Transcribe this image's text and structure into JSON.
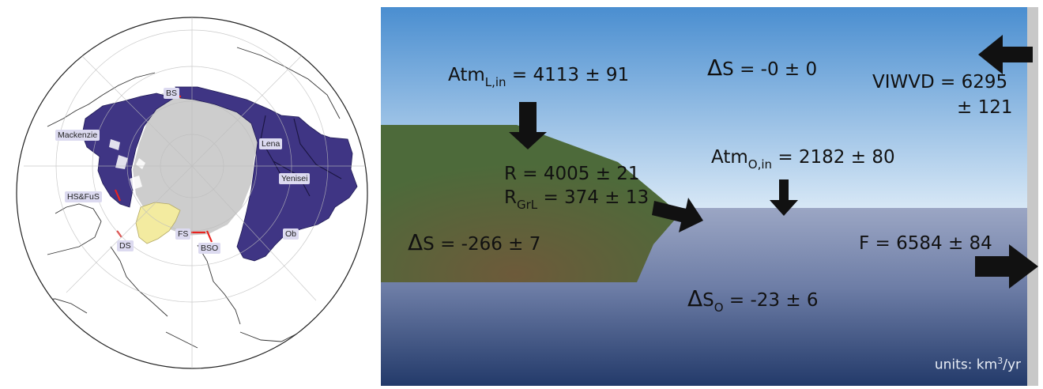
{
  "map": {
    "regions": [
      {
        "key": "bs",
        "label": "BS"
      },
      {
        "key": "mackenzie",
        "label": "Mackenzie"
      },
      {
        "key": "lena",
        "label": "Lena"
      },
      {
        "key": "yenisei",
        "label": "Yenisei"
      },
      {
        "key": "hsfus",
        "label": "HS&FuS"
      },
      {
        "key": "ob",
        "label": "Ob"
      },
      {
        "key": "fs",
        "label": "FS"
      },
      {
        "key": "ds",
        "label": "DS"
      },
      {
        "key": "bso",
        "label": "BSO"
      }
    ],
    "colors": {
      "land": "#ffffff",
      "ocean_interior": "#cdcdcd",
      "watershed": "#3f3584",
      "greenland": "#f3eba0",
      "gateway_line": "#e8231f"
    }
  },
  "diagram": {
    "atm_land": {
      "prefix": "Atm",
      "sub": "L,in",
      "value": "= 4113 ± 91"
    },
    "ds_atm": {
      "delta": "Δ",
      "text": "S  = -0 ± 0"
    },
    "viwvd": {
      "line1": "VIWVD = 6295",
      "line2": "± 121"
    },
    "atm_ocean": {
      "prefix": "Atm",
      "sub": "O,in",
      "value": "= 2182 ± 80"
    },
    "runoff": {
      "text": "R = 4005 ± 21"
    },
    "runoff_grl": {
      "prefix": "R",
      "sub": "GrL",
      "value": "= 374 ± 13"
    },
    "ds_land": {
      "delta": "Δ",
      "text": "S  = -266 ± 7"
    },
    "outflow": {
      "text": "F = 6584 ± 84"
    },
    "ds_ocean": {
      "delta": "Δ",
      "prefix": "S",
      "sub": "O",
      "value": "= -23 ± 6"
    },
    "units": {
      "text": "units: km",
      "sup": "3",
      "suffix": "/yr"
    },
    "colors": {
      "sky_top": "#4a8ed0",
      "sky_bottom": "#d8e8f6",
      "land": "#4d6a3a",
      "ocean_top": "#9ba6c4",
      "ocean_bottom": "#233a6a",
      "arrow": "#111111",
      "edge_bar": "#c8c8c8"
    }
  }
}
